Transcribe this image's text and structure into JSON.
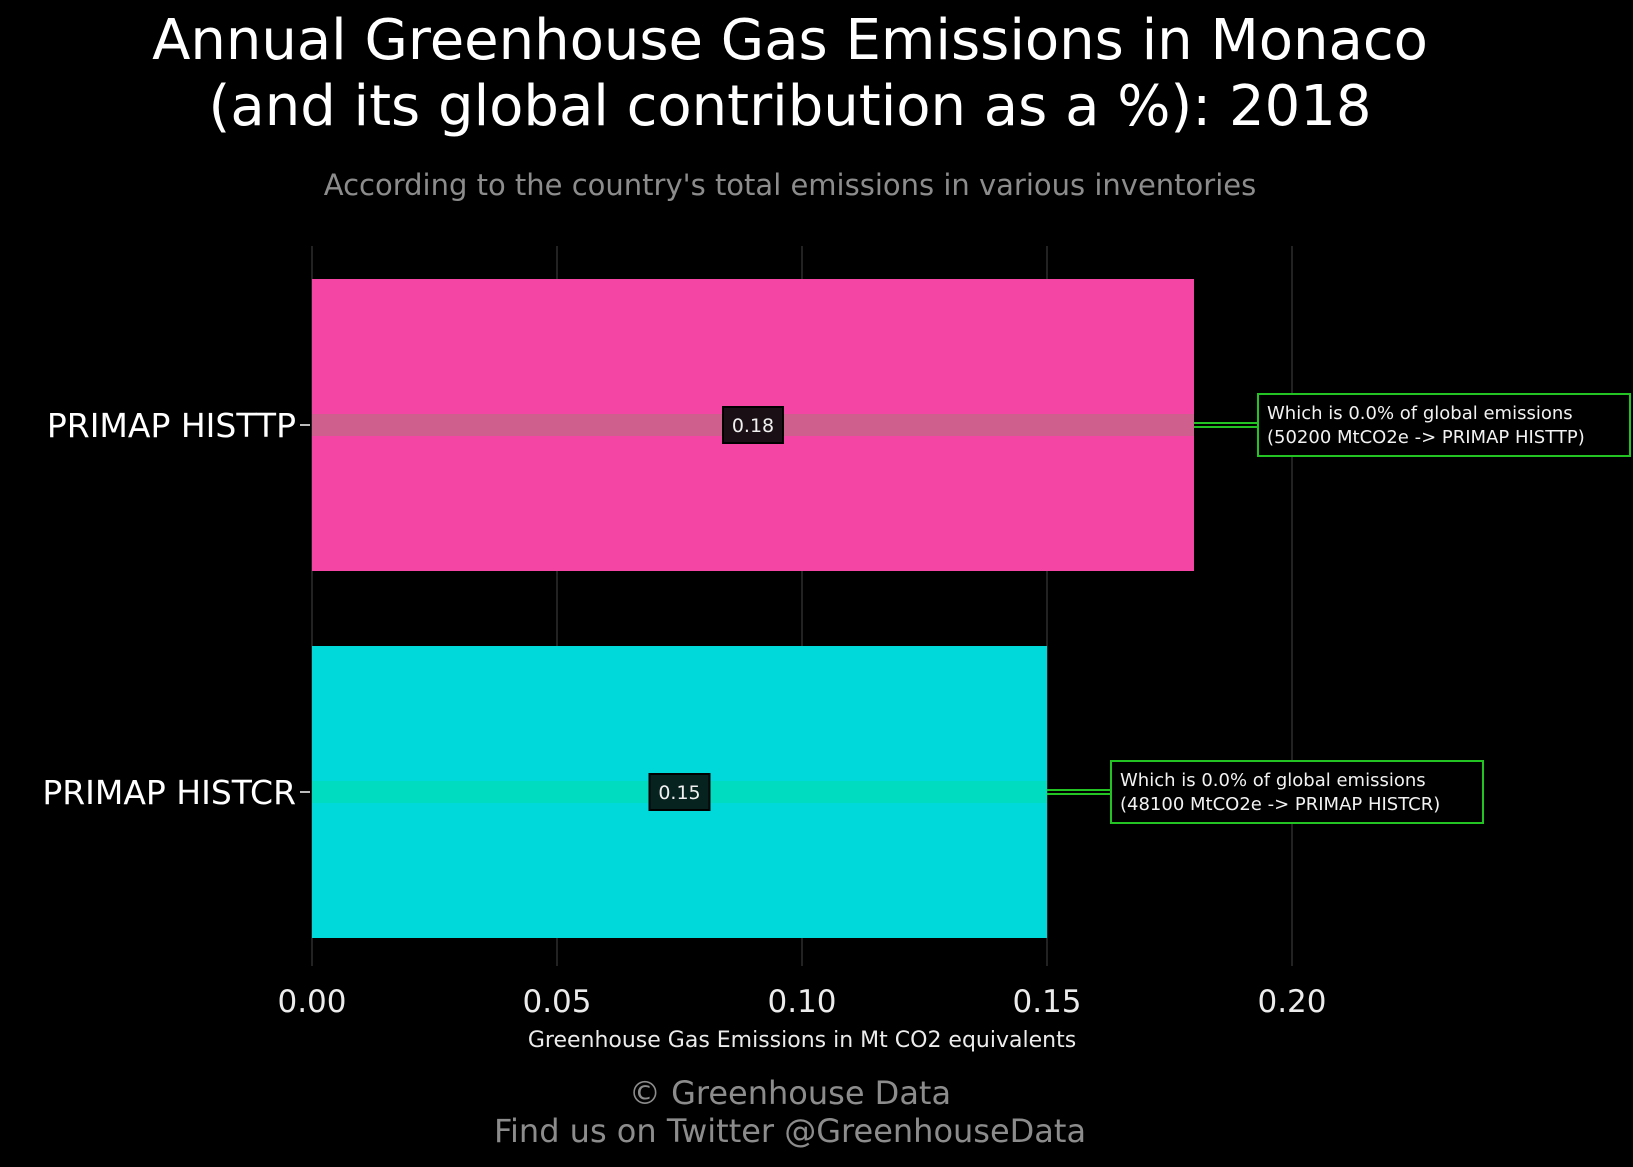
{
  "title": "Annual Greenhouse Gas Emissions in Monaco\n(and its global contribution as a %): 2018",
  "subtitle": "According to the country's total emissions in various inventories",
  "footer": {
    "line1": "© Greenhouse Data",
    "line2": "Find us on Twitter @GreenhouseData"
  },
  "colors": {
    "background": "#000000",
    "grid": "#2e2e2e",
    "annotation_border": "#22c322",
    "annotation_line": "#22c322"
  },
  "chart_data": {
    "type": "bar",
    "orientation": "horizontal",
    "xlabel": "Greenhouse Gas Emissions in Mt CO2 equivalents",
    "xlim": [
      0,
      0.24
    ],
    "xticks": [
      0.0,
      0.05,
      0.1,
      0.15,
      0.2
    ],
    "xtick_labels": [
      "0.00",
      "0.05",
      "0.10",
      "0.15",
      "0.20"
    ],
    "grid": true,
    "categories": [
      "PRIMAP HISTTP",
      "PRIMAP HISTCR"
    ],
    "values": [
      0.18,
      0.15
    ],
    "value_labels": [
      "0.18",
      "0.15"
    ],
    "bar_colors": [
      "#f445a4",
      "#00d9d9"
    ],
    "band_colors": [
      "#cf5f8c",
      "#00dcc0"
    ],
    "annotations": [
      {
        "line1": "Which is 0.0% of global emissions",
        "line2": "(50200 MtCO2e -> PRIMAP HISTTP)"
      },
      {
        "line1": "Which is 0.0% of global emissions",
        "line2": "(48100 MtCO2e -> PRIMAP HISTCR)"
      }
    ]
  }
}
